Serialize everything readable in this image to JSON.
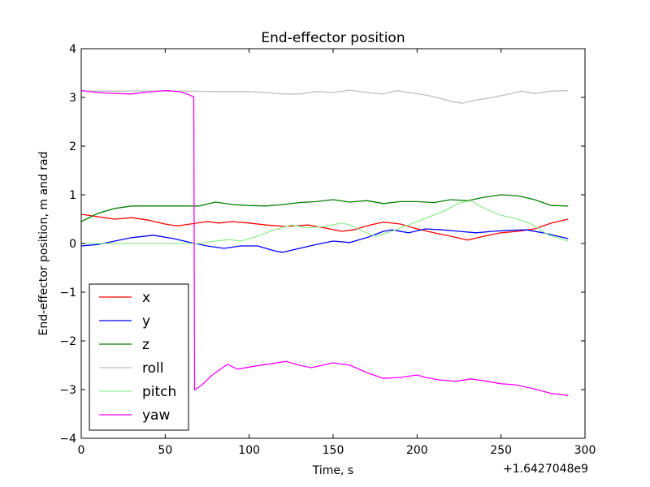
{
  "chart_data": {
    "type": "line",
    "title": "End-effector position",
    "xlabel": "Time, s",
    "ylabel": "End-effector position, m and rad",
    "x_offset_label": "+1.6427048e9",
    "xlim": [
      0,
      300
    ],
    "ylim": [
      -4,
      4
    ],
    "xticks": [
      0,
      50,
      100,
      150,
      200,
      250,
      300
    ],
    "yticks": [
      -4,
      -3,
      -2,
      -1,
      0,
      1,
      2,
      3,
      4
    ],
    "grid": false,
    "legend_position": "lower-left",
    "series": [
      {
        "name": "x",
        "color": "#ff0000",
        "points": [
          [
            0,
            0.6
          ],
          [
            10,
            0.55
          ],
          [
            20,
            0.5
          ],
          [
            30,
            0.53
          ],
          [
            40,
            0.48
          ],
          [
            50,
            0.4
          ],
          [
            57,
            0.36
          ],
          [
            65,
            0.4
          ],
          [
            75,
            0.45
          ],
          [
            82,
            0.42
          ],
          [
            90,
            0.45
          ],
          [
            100,
            0.42
          ],
          [
            110,
            0.38
          ],
          [
            122,
            0.35
          ],
          [
            135,
            0.38
          ],
          [
            145,
            0.32
          ],
          [
            155,
            0.25
          ],
          [
            162,
            0.28
          ],
          [
            172,
            0.38
          ],
          [
            180,
            0.44
          ],
          [
            190,
            0.4
          ],
          [
            200,
            0.3
          ],
          [
            210,
            0.22
          ],
          [
            220,
            0.15
          ],
          [
            230,
            0.07
          ],
          [
            240,
            0.15
          ],
          [
            250,
            0.22
          ],
          [
            260,
            0.25
          ],
          [
            270,
            0.3
          ],
          [
            280,
            0.42
          ],
          [
            290,
            0.5
          ]
        ]
      },
      {
        "name": "y",
        "color": "#0000ff",
        "points": [
          [
            0,
            -0.05
          ],
          [
            10,
            -0.02
          ],
          [
            20,
            0.05
          ],
          [
            30,
            0.12
          ],
          [
            43,
            0.17
          ],
          [
            55,
            0.1
          ],
          [
            65,
            0.02
          ],
          [
            75,
            -0.05
          ],
          [
            85,
            -0.1
          ],
          [
            95,
            -0.05
          ],
          [
            105,
            -0.05
          ],
          [
            115,
            -0.15
          ],
          [
            120,
            -0.18
          ],
          [
            130,
            -0.1
          ],
          [
            140,
            -0.02
          ],
          [
            150,
            0.05
          ],
          [
            160,
            0.02
          ],
          [
            170,
            0.12
          ],
          [
            180,
            0.25
          ],
          [
            185,
            0.28
          ],
          [
            195,
            0.22
          ],
          [
            205,
            0.3
          ],
          [
            215,
            0.28
          ],
          [
            225,
            0.25
          ],
          [
            235,
            0.22
          ],
          [
            245,
            0.25
          ],
          [
            255,
            0.27
          ],
          [
            265,
            0.28
          ],
          [
            275,
            0.22
          ],
          [
            285,
            0.14
          ],
          [
            290,
            0.1
          ]
        ]
      },
      {
        "name": "z",
        "color": "#008000",
        "points": [
          [
            0,
            0.45
          ],
          [
            10,
            0.62
          ],
          [
            20,
            0.72
          ],
          [
            30,
            0.77
          ],
          [
            50,
            0.77
          ],
          [
            70,
            0.77
          ],
          [
            80,
            0.85
          ],
          [
            90,
            0.8
          ],
          [
            100,
            0.78
          ],
          [
            110,
            0.77
          ],
          [
            120,
            0.8
          ],
          [
            130,
            0.84
          ],
          [
            140,
            0.86
          ],
          [
            150,
            0.9
          ],
          [
            160,
            0.85
          ],
          [
            170,
            0.88
          ],
          [
            180,
            0.82
          ],
          [
            190,
            0.86
          ],
          [
            200,
            0.86
          ],
          [
            210,
            0.84
          ],
          [
            220,
            0.9
          ],
          [
            230,
            0.88
          ],
          [
            240,
            0.95
          ],
          [
            250,
            1.0
          ],
          [
            260,
            0.98
          ],
          [
            270,
            0.9
          ],
          [
            280,
            0.78
          ],
          [
            290,
            0.77
          ]
        ]
      },
      {
        "name": "roll",
        "color": "#bfbfbf",
        "points": [
          [
            0,
            3.13
          ],
          [
            20,
            3.13
          ],
          [
            40,
            3.13
          ],
          [
            60,
            3.13
          ],
          [
            80,
            3.12
          ],
          [
            100,
            3.12
          ],
          [
            110,
            3.1
          ],
          [
            120,
            3.07
          ],
          [
            130,
            3.07
          ],
          [
            140,
            3.12
          ],
          [
            150,
            3.1
          ],
          [
            160,
            3.15
          ],
          [
            170,
            3.1
          ],
          [
            180,
            3.07
          ],
          [
            188,
            3.14
          ],
          [
            195,
            3.1
          ],
          [
            205,
            3.05
          ],
          [
            215,
            2.97
          ],
          [
            220,
            2.92
          ],
          [
            227,
            2.88
          ],
          [
            233,
            2.93
          ],
          [
            245,
            3.0
          ],
          [
            255,
            3.07
          ],
          [
            262,
            3.13
          ],
          [
            270,
            3.08
          ],
          [
            280,
            3.13
          ],
          [
            290,
            3.14
          ]
        ]
      },
      {
        "name": "pitch",
        "color": "#90ee90",
        "points": [
          [
            0,
            0.0
          ],
          [
            20,
            0.0
          ],
          [
            40,
            0.0
          ],
          [
            60,
            0.0
          ],
          [
            70,
            0.0
          ],
          [
            80,
            0.05
          ],
          [
            88,
            0.08
          ],
          [
            95,
            0.05
          ],
          [
            105,
            0.15
          ],
          [
            115,
            0.28
          ],
          [
            125,
            0.38
          ],
          [
            135,
            0.32
          ],
          [
            145,
            0.35
          ],
          [
            155,
            0.42
          ],
          [
            160,
            0.38
          ],
          [
            170,
            0.22
          ],
          [
            175,
            0.15
          ],
          [
            185,
            0.25
          ],
          [
            200,
            0.45
          ],
          [
            215,
            0.65
          ],
          [
            225,
            0.83
          ],
          [
            232,
            0.88
          ],
          [
            240,
            0.72
          ],
          [
            250,
            0.58
          ],
          [
            260,
            0.5
          ],
          [
            268,
            0.4
          ],
          [
            278,
            0.18
          ],
          [
            290,
            0.05
          ]
        ]
      },
      {
        "name": "yaw",
        "color": "#ff00ff",
        "points": [
          [
            0,
            3.14
          ],
          [
            10,
            3.1
          ],
          [
            20,
            3.08
          ],
          [
            30,
            3.07
          ],
          [
            40,
            3.11
          ],
          [
            50,
            3.14
          ],
          [
            58,
            3.12
          ],
          [
            63,
            3.07
          ],
          [
            67,
            3.01
          ],
          [
            67.5,
            -3.01
          ],
          [
            72,
            -2.9
          ],
          [
            78,
            -2.7
          ],
          [
            87,
            -2.48
          ],
          [
            93,
            -2.58
          ],
          [
            103,
            -2.52
          ],
          [
            113,
            -2.47
          ],
          [
            122,
            -2.42
          ],
          [
            130,
            -2.5
          ],
          [
            137,
            -2.55
          ],
          [
            150,
            -2.45
          ],
          [
            160,
            -2.5
          ],
          [
            170,
            -2.65
          ],
          [
            180,
            -2.77
          ],
          [
            190,
            -2.75
          ],
          [
            200,
            -2.7
          ],
          [
            205,
            -2.75
          ],
          [
            213,
            -2.8
          ],
          [
            223,
            -2.83
          ],
          [
            232,
            -2.78
          ],
          [
            240,
            -2.82
          ],
          [
            250,
            -2.88
          ],
          [
            258,
            -2.9
          ],
          [
            268,
            -2.97
          ],
          [
            280,
            -3.08
          ],
          [
            290,
            -3.12
          ]
        ]
      }
    ]
  }
}
